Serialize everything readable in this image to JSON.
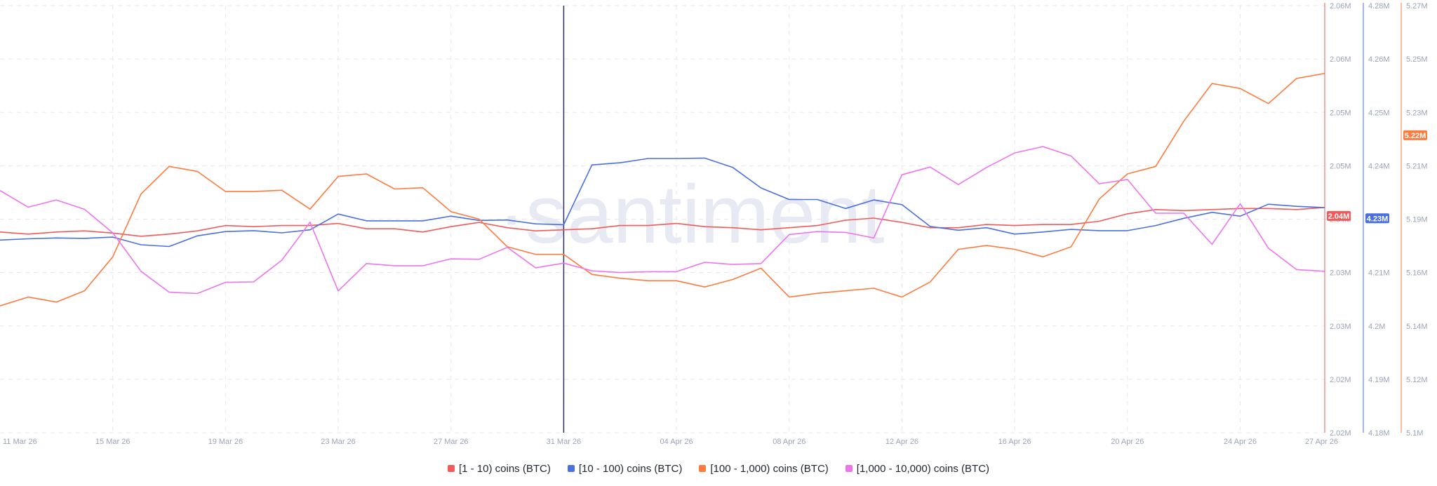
{
  "watermark": "·santiment",
  "chart_data": {
    "type": "line",
    "x": [
      "11 Mar 26",
      "12 Mar 26",
      "13 Mar 26",
      "14 Mar 26",
      "15 Mar 26",
      "16 Mar 26",
      "17 Mar 26",
      "18 Mar 26",
      "19 Mar 26",
      "20 Mar 26",
      "21 Mar 26",
      "22 Mar 26",
      "23 Mar 26",
      "24 Mar 26",
      "25 Mar 26",
      "26 Mar 26",
      "27 Mar 26",
      "28 Mar 26",
      "29 Mar 26",
      "30 Mar 26",
      "31 Mar 26",
      "01 Apr 26",
      "02 Apr 26",
      "03 Apr 26",
      "04 Apr 26",
      "05 Apr 26",
      "06 Apr 26",
      "07 Apr 26",
      "08 Apr 26",
      "09 Apr 26",
      "10 Apr 26",
      "11 Apr 26",
      "12 Apr 26",
      "13 Apr 26",
      "14 Apr 26",
      "15 Apr 26",
      "16 Apr 26",
      "17 Apr 26",
      "18 Apr 26",
      "19 Apr 26",
      "20 Apr 26",
      "21 Apr 26",
      "22 Apr 26",
      "23 Apr 26",
      "24 Apr 26",
      "25 Apr 26",
      "26 Apr 26",
      "27 Apr 26"
    ],
    "x_tick_labels": [
      "11 Mar 26",
      "15 Mar 26",
      "19 Mar 26",
      "23 Mar 26",
      "27 Mar 26",
      "31 Mar 26",
      "04 Apr 26",
      "08 Apr 26",
      "12 Apr 26",
      "16 Apr 26",
      "20 Apr 26",
      "24 Apr 26",
      "27 Apr 26"
    ],
    "highlight_x": "31 Mar 26",
    "grid": true,
    "legend_position": "bottom-center",
    "axes": [
      {
        "id": "a1",
        "color": "#f05a5a",
        "range": [
          2.02,
          2.06
        ],
        "ticks": [
          "2.06M",
          "2.06M",
          "2.05M",
          "2.05M",
          "2.04M",
          "2.03M",
          "2.03M",
          "2.02M",
          "2.02M"
        ],
        "current_label": "2.04M",
        "current_value": 2.0403
      },
      {
        "id": "a2",
        "color": "#4a6fe3",
        "range": [
          4.18,
          4.28
        ],
        "ticks": [
          "4.28M",
          "4.26M",
          "4.25M",
          "4.24M",
          "4.23M",
          "4.21M",
          "4.2M",
          "4.19M",
          "4.18M"
        ],
        "current_label": "4.23M",
        "current_value": 4.2302
      },
      {
        "id": "a3",
        "color": "#ff7a3d",
        "range": [
          5.1,
          5.27
        ],
        "ticks": [
          "5.27M",
          "5.25M",
          "5.23M",
          "5.21M",
          "5.19M",
          "5.16M",
          "5.14M",
          "5.12M",
          "5.1M"
        ],
        "current_label": "5.22M",
        "current_value": 5.2184
      }
    ],
    "series": [
      {
        "name": "[1 - 10) coins (BTC)",
        "color": "#f05a5a",
        "axis": "a1",
        "values": [
          2.0388,
          2.0386,
          2.0388,
          2.0389,
          2.0387,
          2.0384,
          2.0386,
          2.0389,
          2.0394,
          2.0393,
          2.0394,
          2.0394,
          2.0396,
          2.0391,
          2.0391,
          2.0388,
          2.0393,
          2.0397,
          2.0392,
          2.0389,
          2.039,
          2.0391,
          2.0394,
          2.0394,
          2.0396,
          2.0393,
          2.0392,
          2.039,
          2.0392,
          2.0394,
          2.0399,
          2.0401,
          2.0397,
          2.0392,
          2.0392,
          2.0395,
          2.0394,
          2.0395,
          2.0395,
          2.0398,
          2.0405,
          2.0409,
          2.0408,
          2.0409,
          2.041,
          2.041,
          2.0409,
          2.0411
        ]
      },
      {
        "name": "[10 - 100) coins (BTC)",
        "color": "#4a6fe3",
        "axis": "a2",
        "values": [
          4.2251,
          4.2254,
          4.2256,
          4.2255,
          4.2258,
          4.224,
          4.2236,
          4.2261,
          4.2271,
          4.2273,
          4.2268,
          4.2275,
          4.2312,
          4.2296,
          4.2296,
          4.2296,
          4.2307,
          4.2297,
          4.2298,
          4.2289,
          4.2287,
          4.2427,
          4.2432,
          4.2442,
          4.2442,
          4.2443,
          4.2421,
          4.2373,
          4.2346,
          4.2346,
          4.2325,
          4.2345,
          4.2334,
          4.2283,
          4.2274,
          4.228,
          4.2265,
          4.227,
          4.2276,
          4.2273,
          4.2273,
          4.2285,
          4.2302,
          4.2316,
          4.2307,
          4.2335,
          4.233,
          4.2327
        ]
      },
      {
        "name": "[100 - 1,000) coins (BTC)",
        "color": "#ff7a3d",
        "axis": "a3",
        "values": [
          5.1505,
          5.154,
          5.152,
          5.1565,
          5.17,
          5.195,
          5.206,
          5.204,
          5.196,
          5.196,
          5.1965,
          5.189,
          5.202,
          5.203,
          5.197,
          5.1975,
          5.188,
          5.185,
          5.174,
          5.171,
          5.171,
          5.163,
          5.1615,
          5.1605,
          5.1605,
          5.158,
          5.161,
          5.1655,
          5.154,
          5.1555,
          5.1565,
          5.1575,
          5.154,
          5.16,
          5.173,
          5.1745,
          5.173,
          5.17,
          5.174,
          5.193,
          5.203,
          5.206,
          5.224,
          5.239,
          5.237,
          5.231,
          5.241,
          5.243
        ]
      },
      {
        "name": "[1,000 - 10,000) coins (BTC)",
        "color": "#ee74ee",
        "axis": "a2",
        "values": [
          4.2367,
          4.2328,
          4.2345,
          4.2323,
          4.2268,
          4.2178,
          4.2129,
          4.2126,
          4.2152,
          4.2153,
          4.2204,
          4.2293,
          4.2132,
          4.2196,
          4.2191,
          4.2191,
          4.2207,
          4.2206,
          4.2234,
          4.2186,
          4.2197,
          4.2179,
          4.2175,
          4.2177,
          4.2177,
          4.2199,
          4.2194,
          4.2196,
          4.2264,
          4.2271,
          4.2269,
          4.2256,
          4.2404,
          4.2422,
          4.2381,
          4.2421,
          4.2455,
          4.247,
          4.2448,
          4.2383,
          4.2393,
          4.2314,
          4.2314,
          4.2241,
          4.2336,
          4.2232,
          4.2182,
          4.2178
        ]
      }
    ]
  }
}
